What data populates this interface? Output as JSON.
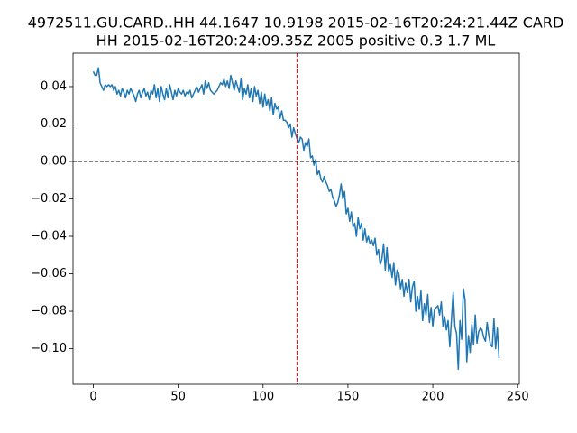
{
  "chart_data": {
    "type": "line",
    "title": [
      "4972511.GU.CARD..HH 44.1647 10.9198 2015-02-16T20:24:21.44Z CARD",
      "HH 2015-02-16T20:24:09.35Z 2005 positive 0.3 1.7 ML"
    ],
    "color": "#1f77b4",
    "x": [
      0,
      1,
      2,
      3,
      4,
      5,
      6,
      7,
      8,
      9,
      10,
      11,
      12,
      13,
      14,
      15,
      16,
      17,
      18,
      19,
      20,
      21,
      22,
      23,
      24,
      25,
      26,
      27,
      28,
      29,
      30,
      31,
      32,
      33,
      34,
      35,
      36,
      37,
      38,
      39,
      40,
      41,
      42,
      43,
      44,
      45,
      46,
      47,
      48,
      49,
      50,
      51,
      52,
      53,
      54,
      55,
      56,
      57,
      58,
      59,
      60,
      61,
      62,
      63,
      64,
      65,
      66,
      67,
      68,
      69,
      70,
      71,
      72,
      73,
      74,
      75,
      76,
      77,
      78,
      79,
      80,
      81,
      82,
      83,
      84,
      85,
      86,
      87,
      88,
      89,
      90,
      91,
      92,
      93,
      94,
      95,
      96,
      97,
      98,
      99,
      100,
      101,
      102,
      103,
      104,
      105,
      106,
      107,
      108,
      109,
      110,
      111,
      112,
      113,
      114,
      115,
      116,
      117,
      118,
      119,
      120,
      121,
      122,
      123,
      124,
      125,
      126,
      127,
      128,
      129,
      130,
      131,
      132,
      133,
      134,
      135,
      136,
      137,
      138,
      139,
      140,
      141,
      142,
      143,
      144,
      145,
      146,
      147,
      148,
      149,
      150,
      151,
      152,
      153,
      154,
      155,
      156,
      157,
      158,
      159,
      160,
      161,
      162,
      163,
      164,
      165,
      166,
      167,
      168,
      169,
      170,
      171,
      172,
      173,
      174,
      175,
      176,
      177,
      178,
      179,
      180,
      181,
      182,
      183,
      184,
      185,
      186,
      187,
      188,
      189,
      190,
      191,
      192,
      193,
      194,
      195,
      196,
      197,
      198,
      199,
      200,
      201,
      202,
      203,
      204,
      205,
      206,
      207,
      208,
      209,
      210,
      211,
      212,
      213,
      214,
      215,
      216,
      217,
      218,
      219,
      220,
      221,
      222,
      223,
      224,
      225,
      226,
      227,
      228,
      229,
      230,
      231,
      232,
      233,
      234,
      235,
      236,
      237,
      238,
      239
    ],
    "values": [
      0.048,
      0.046,
      0.046,
      0.05,
      0.042,
      0.04,
      0.038,
      0.041,
      0.04,
      0.041,
      0.04,
      0.041,
      0.038,
      0.04,
      0.036,
      0.038,
      0.035,
      0.039,
      0.037,
      0.034,
      0.038,
      0.036,
      0.039,
      0.037,
      0.035,
      0.032,
      0.036,
      0.038,
      0.034,
      0.037,
      0.039,
      0.035,
      0.037,
      0.033,
      0.038,
      0.036,
      0.041,
      0.034,
      0.039,
      0.032,
      0.04,
      0.036,
      0.033,
      0.039,
      0.034,
      0.041,
      0.037,
      0.033,
      0.038,
      0.035,
      0.039,
      0.037,
      0.036,
      0.038,
      0.035,
      0.037,
      0.036,
      0.038,
      0.034,
      0.036,
      0.038,
      0.04,
      0.037,
      0.039,
      0.041,
      0.036,
      0.043,
      0.039,
      0.042,
      0.038,
      0.037,
      0.036,
      0.037,
      0.038,
      0.04,
      0.042,
      0.041,
      0.044,
      0.04,
      0.043,
      0.039,
      0.046,
      0.042,
      0.038,
      0.043,
      0.04,
      0.037,
      0.044,
      0.033,
      0.039,
      0.036,
      0.041,
      0.034,
      0.039,
      0.032,
      0.04,
      0.035,
      0.038,
      0.031,
      0.037,
      0.029,
      0.036,
      0.03,
      0.033,
      0.027,
      0.034,
      0.025,
      0.031,
      0.028,
      0.029,
      0.023,
      0.027,
      0.022,
      0.022,
      0.021,
      0.018,
      0.02,
      0.013,
      0.018,
      0.015,
      0.012,
      0.01,
      0.013,
      0.012,
      0.006,
      0.01,
      0.008,
      0.012,
      0.002,
      0.003,
      -0.002,
      0.001,
      -0.007,
      -0.005,
      -0.009,
      -0.011,
      -0.008,
      -0.011,
      -0.013,
      -0.016,
      -0.015,
      -0.019,
      -0.021,
      -0.024,
      -0.022,
      -0.018,
      -0.012,
      -0.02,
      -0.016,
      -0.028,
      -0.025,
      -0.032,
      -0.027,
      -0.035,
      -0.033,
      -0.04,
      -0.03,
      -0.036,
      -0.033,
      -0.042,
      -0.036,
      -0.043,
      -0.04,
      -0.044,
      -0.042,
      -0.045,
      -0.041,
      -0.05,
      -0.047,
      -0.055,
      -0.052,
      -0.044,
      -0.058,
      -0.046,
      -0.059,
      -0.055,
      -0.062,
      -0.054,
      -0.066,
      -0.058,
      -0.06,
      -0.068,
      -0.063,
      -0.072,
      -0.065,
      -0.07,
      -0.063,
      -0.075,
      -0.067,
      -0.064,
      -0.08,
      -0.072,
      -0.079,
      -0.069,
      -0.085,
      -0.076,
      -0.082,
      -0.071,
      -0.086,
      -0.078,
      -0.088,
      -0.079,
      -0.078,
      -0.077,
      -0.082,
      -0.075,
      -0.088,
      -0.083,
      -0.09,
      -0.085,
      -0.099,
      -0.084,
      -0.07,
      -0.088,
      -0.092,
      -0.111,
      -0.085,
      -0.095,
      -0.068,
      -0.074,
      -0.107,
      -0.093,
      -0.102,
      -0.087,
      -0.098,
      -0.082,
      -0.097,
      -0.091,
      -0.089,
      -0.09,
      -0.094,
      -0.096,
      -0.086,
      -0.093,
      -0.098,
      -0.099,
      -0.084,
      -0.1,
      -0.089,
      -0.105
    ],
    "xlim": [
      -11.95,
      250.95
    ],
    "xticks": [
      0,
      50,
      100,
      150,
      200,
      250
    ],
    "ylim": [
      -0.119,
      0.0578
    ],
    "yticks": [
      {
        "value": -0.1,
        "label": "−0.10"
      },
      {
        "value": -0.08,
        "label": "−0.08"
      },
      {
        "value": -0.06,
        "label": "−0.06"
      },
      {
        "value": -0.04,
        "label": "−0.04"
      },
      {
        "value": -0.02,
        "label": "−0.02"
      },
      {
        "value": 0,
        "label": "0.00"
      },
      {
        "value": 0.02,
        "label": "0.02"
      },
      {
        "value": 0.04,
        "label": "0.04"
      }
    ],
    "vlines": [
      {
        "value": 120,
        "color": "red"
      }
    ],
    "hlines": [
      {
        "value": 0,
        "color": "black"
      }
    ]
  }
}
